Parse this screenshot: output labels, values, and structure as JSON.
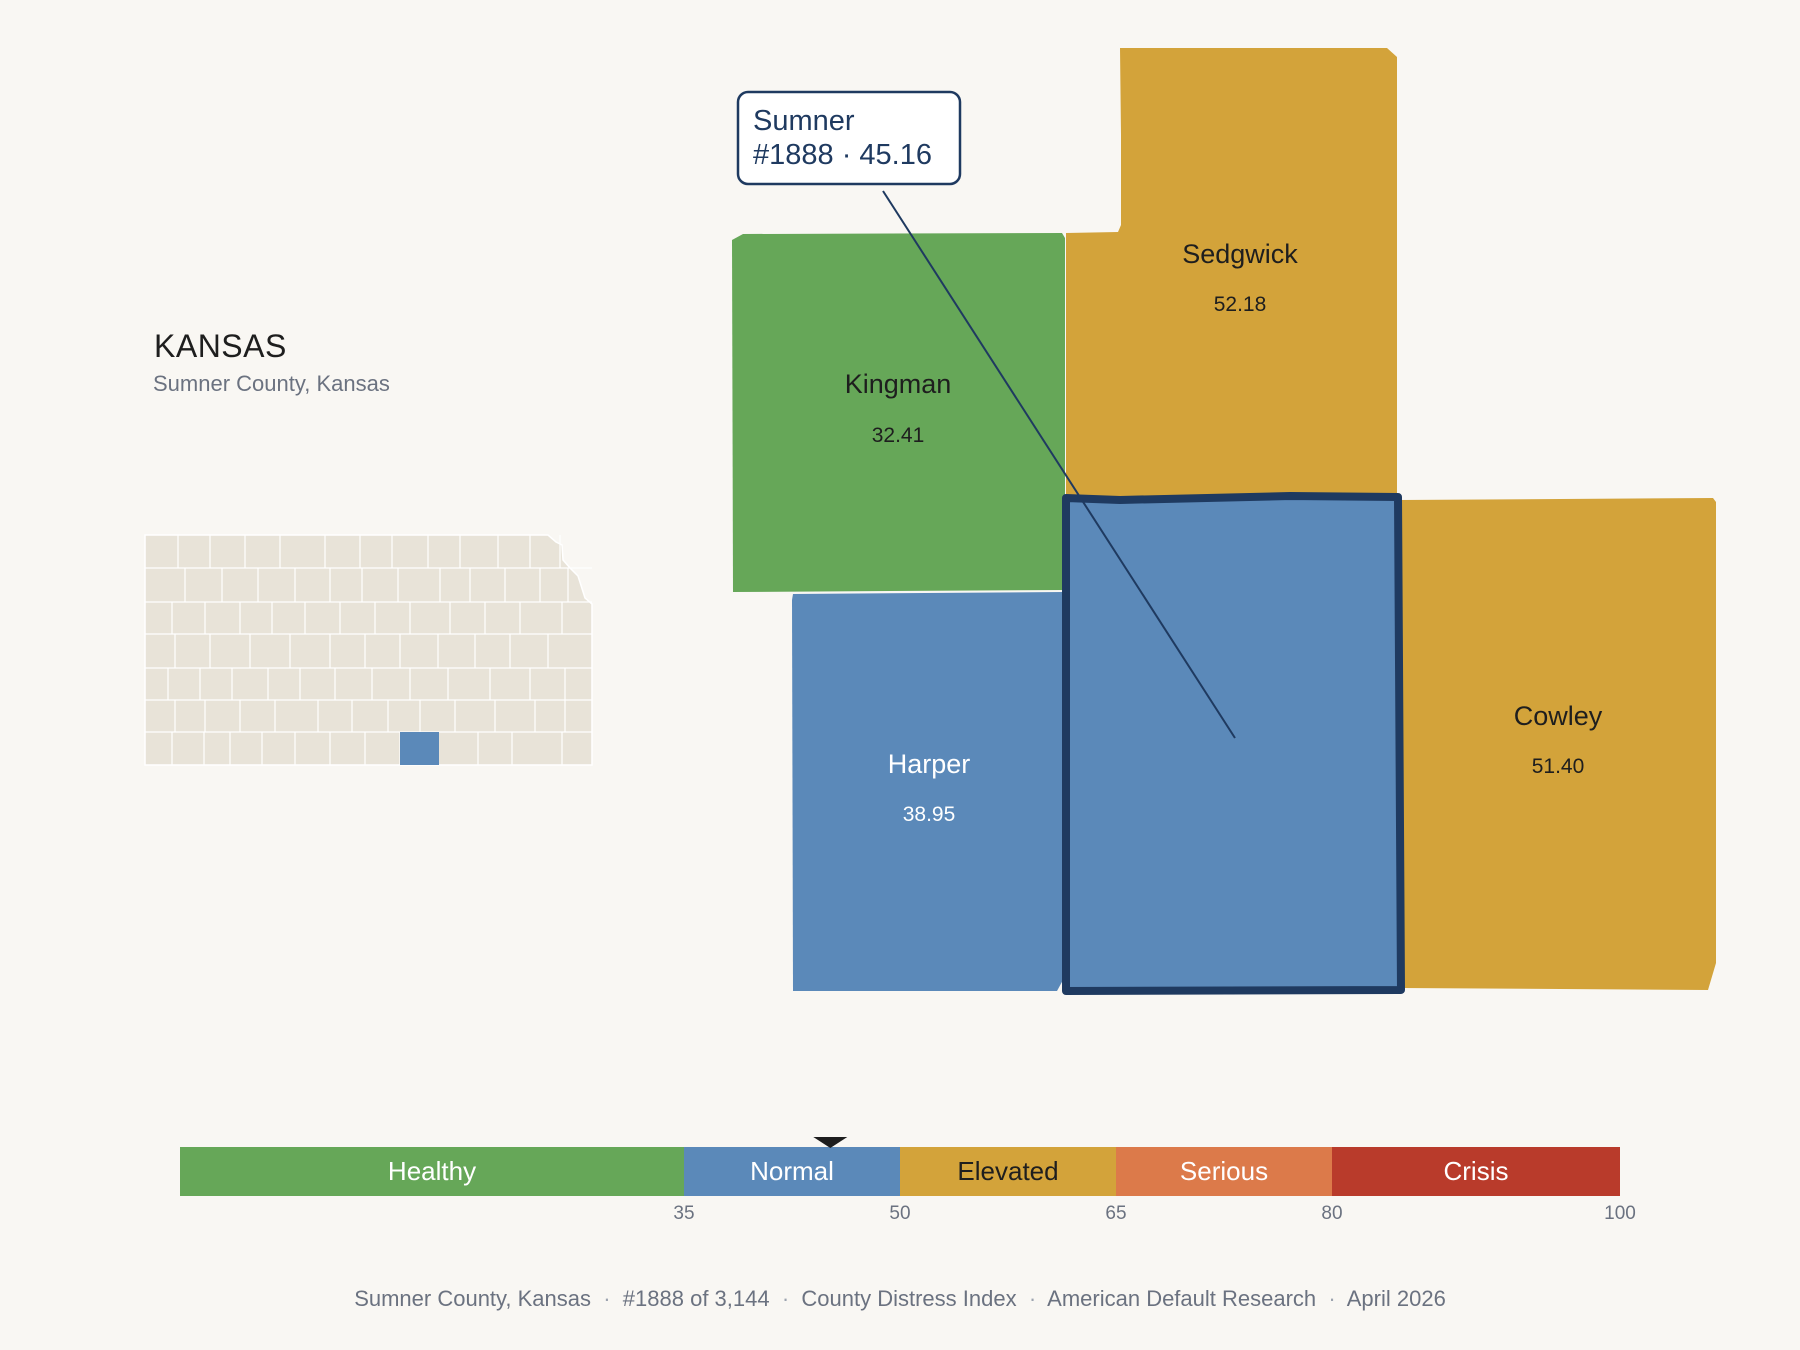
{
  "header": {
    "state_name": "KANSAS",
    "subtitle": "Sumner County, Kansas"
  },
  "callout": {
    "county": "Sumner",
    "detail": "#1888 · 45.16"
  },
  "colors": {
    "healthy": "#66a758",
    "normal": "#5b89b9",
    "elevated": "#d3a33a",
    "serious": "#dc7a4a",
    "crisis": "#b93b2b",
    "highlight_outline": "#1f3a60",
    "locator_fill": "#e8e3d8"
  },
  "counties": [
    {
      "name": "Kingman",
      "value": "32.41",
      "category": "healthy"
    },
    {
      "name": "Sedgwick",
      "value": "52.18",
      "category": "elevated"
    },
    {
      "name": "Harper",
      "value": "38.95",
      "category": "normal"
    },
    {
      "name": "Cowley",
      "value": "51.40",
      "category": "elevated"
    },
    {
      "name": "Sumner",
      "value": "45.16",
      "category": "normal",
      "selected": true
    }
  ],
  "scale": {
    "min": 0,
    "max": 100,
    "marker_value": 45.16,
    "bands": [
      {
        "label": "Healthy",
        "from": 0,
        "to": 35,
        "category": "healthy"
      },
      {
        "label": "Normal",
        "from": 35,
        "to": 50,
        "category": "normal"
      },
      {
        "label": "Elevated",
        "from": 50,
        "to": 65,
        "category": "elevated"
      },
      {
        "label": "Serious",
        "from": 65,
        "to": 80,
        "category": "serious"
      },
      {
        "label": "Crisis",
        "from": 80,
        "to": 100,
        "category": "crisis"
      }
    ],
    "ticks": [
      "35",
      "50",
      "65",
      "80",
      "100"
    ]
  },
  "footer": {
    "items": [
      "Sumner County, Kansas",
      "#1888 of 3,144",
      "County Distress Index",
      "American Default Research",
      "April 2026"
    ]
  }
}
